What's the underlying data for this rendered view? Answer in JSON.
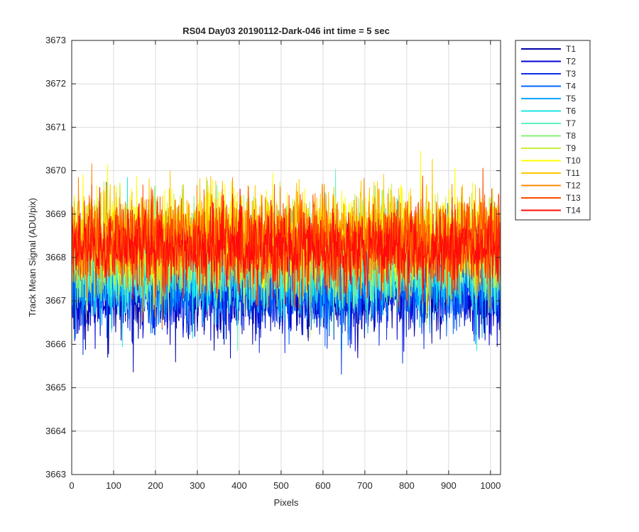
{
  "chart_data": {
    "type": "line",
    "title": "RS04 Day03 20190112-Dark-046 int time = 5 sec",
    "xlabel": "Pixels",
    "ylabel": "Track Mean Signal (ADU/pix)",
    "xlim": [
      0,
      1024
    ],
    "ylim": [
      3663,
      3673
    ],
    "xticks": [
      0,
      100,
      200,
      300,
      400,
      500,
      600,
      700,
      800,
      900,
      1000
    ],
    "yticks": [
      3663,
      3664,
      3665,
      3666,
      3667,
      3668,
      3669,
      3670,
      3671,
      3672,
      3673
    ],
    "grid": true,
    "legend_position": "outside-top-right",
    "x_range": {
      "start": 1,
      "end": 1024,
      "step": 1
    },
    "noise_model": "random fluctuation about the series mean, approximate visual reconstruction",
    "series": [
      {
        "name": "T1",
        "color": "#0000A6",
        "mean": 3667.2,
        "spread": 0.85
      },
      {
        "name": "T2",
        "color": "#0000D8",
        "mean": 3667.3,
        "spread": 0.85
      },
      {
        "name": "T3",
        "color": "#0A2EE8",
        "mean": 3667.4,
        "spread": 0.85
      },
      {
        "name": "T4",
        "color": "#0066FF",
        "mean": 3667.5,
        "spread": 0.85
      },
      {
        "name": "T5",
        "color": "#00A6FF",
        "mean": 3667.6,
        "spread": 0.85
      },
      {
        "name": "T6",
        "color": "#1CE6E6",
        "mean": 3667.8,
        "spread": 0.85
      },
      {
        "name": "T7",
        "color": "#5EF2C6",
        "mean": 3667.9,
        "spread": 0.85
      },
      {
        "name": "T8",
        "color": "#88F27A",
        "mean": 3668.1,
        "spread": 0.85
      },
      {
        "name": "T9",
        "color": "#C8F03A",
        "mean": 3668.3,
        "spread": 0.85
      },
      {
        "name": "T10",
        "color": "#FFFF00",
        "mean": 3668.5,
        "spread": 0.85
      },
      {
        "name": "T11",
        "color": "#FFC800",
        "mean": 3668.5,
        "spread": 0.85
      },
      {
        "name": "T12",
        "color": "#FF8A00",
        "mean": 3668.4,
        "spread": 0.85
      },
      {
        "name": "T13",
        "color": "#FF4A00",
        "mean": 3668.3,
        "spread": 0.85
      },
      {
        "name": "T14",
        "color": "#FF0A0A",
        "mean": 3668.2,
        "spread": 0.75
      }
    ]
  }
}
